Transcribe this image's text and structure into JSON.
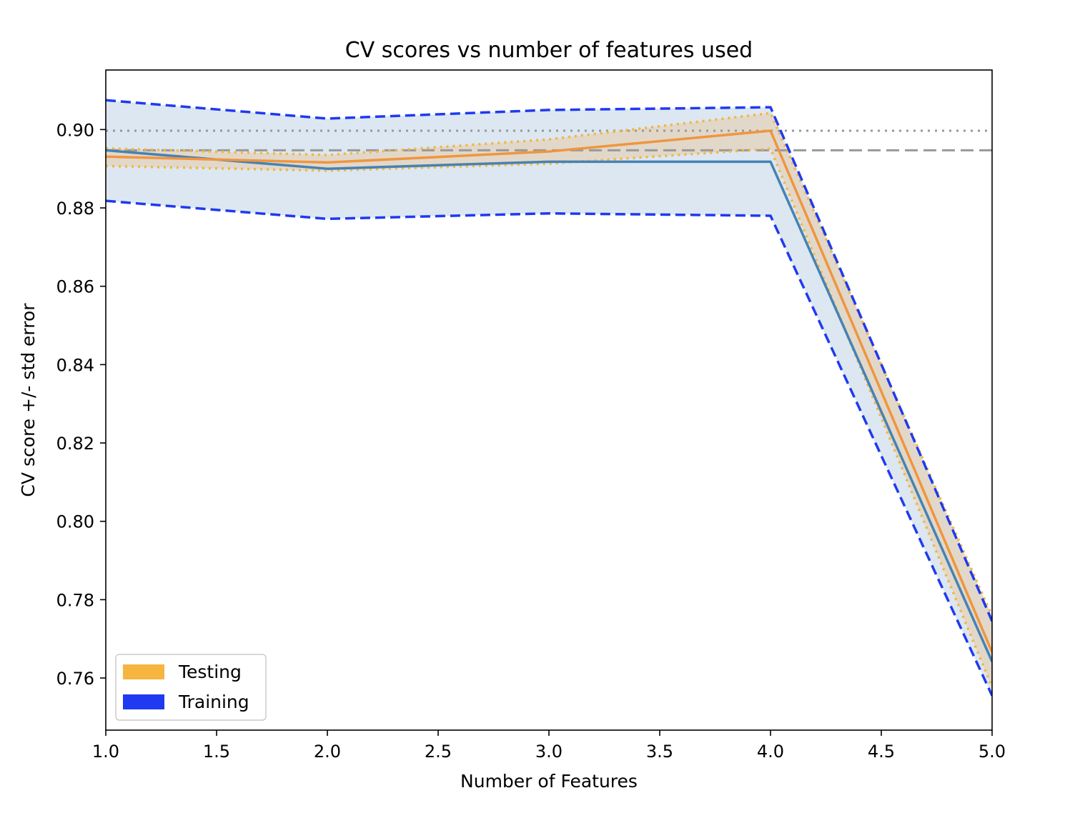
{
  "chart_data": {
    "type": "line",
    "title": "CV scores vs number of features used",
    "xlabel": "Number of Features",
    "ylabel": "CV score +/- std error",
    "xlim": [
      1.0,
      5.0
    ],
    "ylim": [
      0.7467,
      0.9152
    ],
    "xticks": [
      1.0,
      1.5,
      2.0,
      2.5,
      3.0,
      3.5,
      4.0,
      4.5,
      5.0
    ],
    "xtick_labels": [
      "1.0",
      "1.5",
      "2.0",
      "2.5",
      "3.0",
      "3.5",
      "4.0",
      "4.5",
      "5.0"
    ],
    "yticks": [
      0.76,
      0.78,
      0.8,
      0.82,
      0.84,
      0.86,
      0.88,
      0.9
    ],
    "ytick_labels": [
      "0.76",
      "0.78",
      "0.80",
      "0.82",
      "0.84",
      "0.86",
      "0.88",
      "0.90"
    ],
    "grid": false,
    "legend_position": "lower-left",
    "legend": [
      {
        "label": "Testing",
        "color": "#f5b53f"
      },
      {
        "label": "Training",
        "color": "#1f3af0"
      }
    ],
    "x": [
      1,
      2,
      3,
      4,
      5
    ],
    "series": [
      {
        "role": "training-upper",
        "style": "dashed",
        "color": "#1f3af0",
        "values": [
          0.9075,
          0.9028,
          0.905,
          0.9057,
          0.7745
        ]
      },
      {
        "role": "training-mean",
        "style": "solid",
        "color": "#4682b4",
        "values": [
          0.8947,
          0.89,
          0.8918,
          0.8918,
          0.7642
        ]
      },
      {
        "role": "training-lower",
        "style": "dashed",
        "color": "#1f3af0",
        "values": [
          0.8818,
          0.8772,
          0.8786,
          0.878,
          0.7555
        ]
      },
      {
        "role": "testing-upper",
        "style": "dotted",
        "color": "#f5b53f",
        "values": [
          0.8952,
          0.8935,
          0.8975,
          0.9042,
          0.7758
        ]
      },
      {
        "role": "testing-mean",
        "style": "solid",
        "color": "#f0953f",
        "values": [
          0.8931,
          0.8916,
          0.8944,
          0.8997,
          0.7666
        ]
      },
      {
        "role": "testing-lower",
        "style": "dotted",
        "color": "#f5b53f",
        "values": [
          0.8907,
          0.8895,
          0.8913,
          0.8951,
          0.7577
        ]
      }
    ],
    "reference_lines": [
      {
        "style": "dotted",
        "color": "#999999",
        "value": 0.8997
      },
      {
        "style": "dashed",
        "color": "#999999",
        "value": 0.8947
      }
    ],
    "fills": {
      "training_band": "#dce7f1",
      "testing_band": "#e3d5c2"
    }
  }
}
